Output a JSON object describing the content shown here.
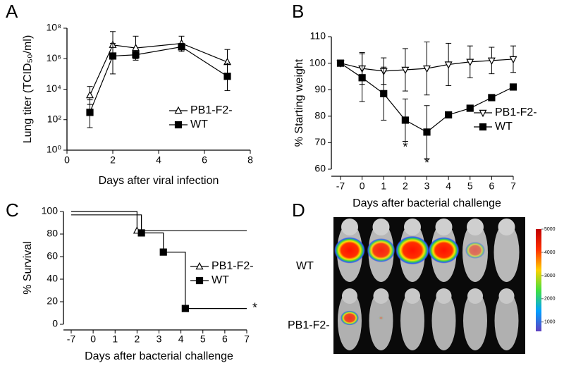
{
  "chart_data": [
    {
      "type": "line",
      "panel": "A",
      "log_y": true,
      "ylabel": "Lung titer (TCID₅₀/ml)",
      "xlabel": "Days after viral infection",
      "xlim": [
        0,
        8
      ],
      "xticks": [
        0,
        2,
        4,
        6,
        8
      ],
      "ylim": [
        1,
        100000000
      ],
      "yticks": [
        {
          "value": 1,
          "label": "10⁰"
        },
        {
          "value": 100,
          "label": "10²"
        },
        {
          "value": 10000,
          "label": "10⁴"
        },
        {
          "value": 1000000,
          "label": "10⁶"
        },
        {
          "value": 100000000,
          "label": "10⁸"
        }
      ],
      "legend": "right",
      "series": [
        {
          "name": "PB1-F2-",
          "color": "#000000",
          "marker": "triangle-open",
          "x": [
            1,
            2,
            3,
            5,
            7
          ],
          "values": [
            4000,
            8000000,
            5000000,
            10000000,
            600000
          ],
          "lower": [
            1000,
            1000000,
            1000000,
            4000000,
            100000
          ],
          "upper": [
            15000,
            60000000,
            30000000,
            30000000,
            4000000
          ]
        },
        {
          "name": "WT",
          "color": "#000000",
          "marker": "square",
          "x": [
            1,
            2,
            3,
            5,
            7
          ],
          "values": [
            300,
            1500000,
            1800000,
            6000000,
            70000
          ],
          "lower": [
            30,
            100000,
            800000,
            3000000,
            8000
          ],
          "upper": [
            2000,
            10000000,
            3000000,
            10000000,
            500000
          ]
        }
      ]
    },
    {
      "type": "line",
      "panel": "B",
      "ylabel": "% Starting weight",
      "xlabel": "Days after bacterial challenge",
      "categories": [
        "-7",
        "0",
        "1",
        "2",
        "3",
        "4",
        "5",
        "6",
        "7"
      ],
      "ylim": [
        60,
        110
      ],
      "yticks": [
        60,
        70,
        80,
        90,
        100,
        110
      ],
      "legend": "right",
      "series": [
        {
          "name": "PB1-F2-",
          "color": "#000000",
          "marker": "triangle-down-open",
          "values": [
            100,
            98,
            97,
            97.5,
            98,
            99.5,
            100.5,
            101,
            101.5
          ],
          "errors": [
            1,
            6,
            5,
            8,
            10,
            8,
            6,
            5,
            5
          ]
        },
        {
          "name": "WT",
          "color": "#000000",
          "marker": "square",
          "values": [
            100,
            94.5,
            88.5,
            78.5,
            74,
            80.5,
            83,
            87,
            91
          ],
          "errors": [
            1,
            9,
            10,
            8,
            10,
            0,
            0,
            0,
            0
          ]
        }
      ],
      "annotations": [
        {
          "text": "*",
          "x": "2",
          "y": 68
        },
        {
          "text": "*",
          "x": "3",
          "y": 62
        }
      ]
    },
    {
      "type": "step",
      "panel": "C",
      "x_break": true,
      "ylabel": "% Survival",
      "xlabel": "Days after bacterial challenge",
      "xlim": [
        -7,
        7
      ],
      "xticks": [
        -7,
        0,
        1,
        2,
        3,
        4,
        5,
        6,
        7
      ],
      "ylim": [
        0,
        100
      ],
      "yticks": [
        0,
        20,
        40,
        60,
        80,
        100
      ],
      "legend": "right",
      "series": [
        {
          "name": "PB1-F2-",
          "color": "#000000",
          "marker": "triangle-open",
          "x": [
            -7,
            2,
            7
          ],
          "values": [
            100,
            83,
            83
          ]
        },
        {
          "name": "WT",
          "color": "#000000",
          "marker": "square",
          "x": [
            -7,
            2.2,
            3.2,
            4.2,
            7
          ],
          "values": [
            97,
            81,
            64,
            14,
            14
          ]
        }
      ],
      "annotations": [
        {
          "text": "*",
          "x": 7,
          "y": 14
        }
      ]
    }
  ],
  "image_panel": {
    "panel": "D",
    "row_labels": [
      "WT",
      "PB1-F2-"
    ],
    "colorbar": {
      "lim": [
        600,
        5000
      ],
      "ticks": [
        5000,
        4000,
        3000,
        2000,
        1000
      ]
    }
  }
}
